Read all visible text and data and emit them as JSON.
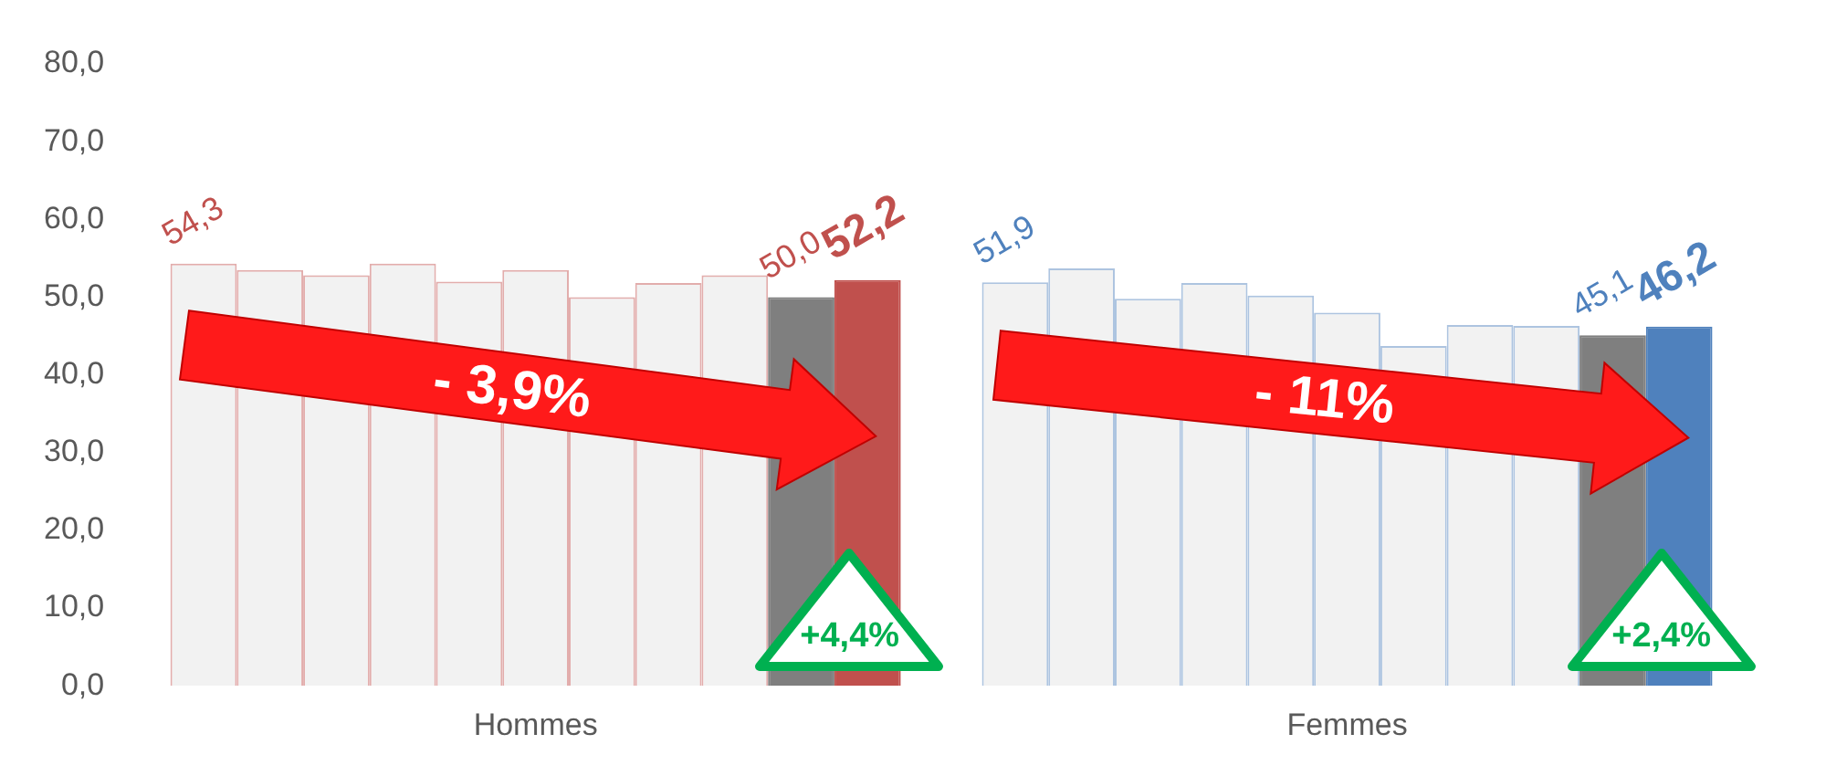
{
  "chart_data": {
    "type": "bar",
    "categories": [
      "Hommes",
      "Femmes"
    ],
    "series": [
      {
        "colors": [
          "#f2f2f2",
          "#f2f2f2"
        ],
        "values": [
          54.3,
          51.9
        ],
        "value_labels": [
          "54,3",
          "51,9"
        ]
      },
      {
        "colors": [
          "#f2f2f2",
          "#f2f2f2"
        ],
        "values": [
          53.5,
          53.7
        ]
      },
      {
        "colors": [
          "#f2f2f2",
          "#f2f2f2"
        ],
        "values": [
          52.8,
          49.8
        ]
      },
      {
        "colors": [
          "#f2f2f2",
          "#f2f2f2"
        ],
        "values": [
          54.3,
          51.8
        ]
      },
      {
        "colors": [
          "#f2f2f2",
          "#f2f2f2"
        ],
        "values": [
          52.0,
          50.2
        ]
      },
      {
        "colors": [
          "#f2f2f2",
          "#f2f2f2"
        ],
        "values": [
          53.5,
          48.0
        ]
      },
      {
        "colors": [
          "#f2f2f2",
          "#f2f2f2"
        ],
        "values": [
          50.0,
          43.7
        ]
      },
      {
        "colors": [
          "#f2f2f2",
          "#f2f2f2"
        ],
        "values": [
          51.8,
          46.4
        ]
      },
      {
        "colors": [
          "#f2f2f2",
          "#f2f2f2"
        ],
        "values": [
          52.8,
          46.3
        ]
      },
      {
        "colors": [
          "#7f7f7f",
          "#7f7f7f"
        ],
        "values": [
          50.0,
          45.1
        ],
        "value_labels": [
          "50,0",
          "45,1"
        ]
      },
      {
        "colors": [
          "#c0504d",
          "#4f81bd"
        ],
        "values": [
          52.2,
          46.2
        ],
        "value_labels": [
          "52,2",
          "46,2"
        ]
      }
    ],
    "ylim": [
      0,
      80
    ],
    "yticks": [
      {
        "value": 0,
        "label": "0,0"
      },
      {
        "value": 10,
        "label": "10,0"
      },
      {
        "value": 20,
        "label": "20,0"
      },
      {
        "value": 30,
        "label": "30,0"
      },
      {
        "value": 40,
        "label": "40,0"
      },
      {
        "value": 50,
        "label": "50,0"
      },
      {
        "value": 60,
        "label": "60,0"
      },
      {
        "value": 70,
        "label": "70,0"
      },
      {
        "value": 80,
        "label": "80,0"
      }
    ],
    "grid": false,
    "legend": false,
    "annotations": [
      "- 3,9%",
      "- 11%",
      "+4,4%",
      "+2,4%"
    ]
  }
}
